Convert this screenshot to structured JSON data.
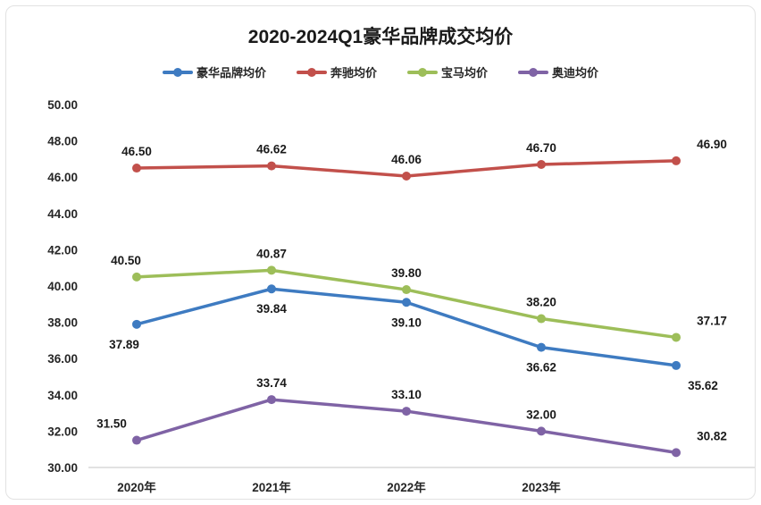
{
  "card": {
    "title": "2020-2024Q1豪华品牌成交均价"
  },
  "chart_data": {
    "type": "line",
    "title": "2020-2024Q1豪华品牌成交均价",
    "categories": [
      "2020年",
      "2021年",
      "2022年",
      "2023年",
      ""
    ],
    "series": [
      {
        "name": "豪华品牌均价",
        "color": "#3e7bc1",
        "values": [
          37.89,
          39.84,
          39.1,
          36.62,
          35.62
        ]
      },
      {
        "name": "奔驰均价",
        "color": "#c2504b",
        "values": [
          46.5,
          46.62,
          46.06,
          46.7,
          46.9
        ]
      },
      {
        "name": "宝马均价",
        "color": "#9dbe59",
        "values": [
          40.5,
          40.87,
          39.8,
          38.2,
          37.17
        ]
      },
      {
        "name": "奥迪均价",
        "color": "#7f63a5",
        "values": [
          31.5,
          33.74,
          33.1,
          32.0,
          30.82
        ]
      }
    ],
    "xlabel": "",
    "ylabel": "",
    "ylim": [
      30,
      50
    ],
    "ytick_step": 2,
    "ytick_labels": [
      "50.00",
      "48.00",
      "46.00",
      "44.00",
      "42.00",
      "40.00",
      "38.00",
      "36.00",
      "34.00",
      "32.00",
      "30.00"
    ],
    "grid": false,
    "legend_position": "top",
    "data_labels_decimals": 2,
    "axis_line_color": "#d9d9d9",
    "tick_label_color": "#262626",
    "data_label_color": "#1a1a1a"
  }
}
